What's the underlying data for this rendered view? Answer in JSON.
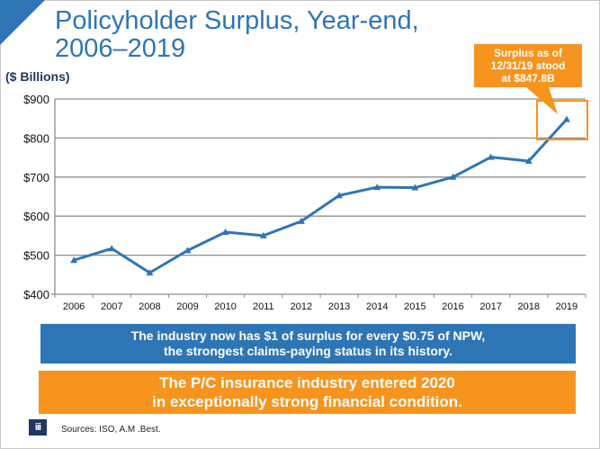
{
  "slide": {
    "title_line1": "Policyholder Surplus, Year-end,",
    "title_line2": "2006–2019",
    "units_label": "($ Billions)",
    "callout_lines": [
      "Surplus as of",
      "12/31/19 stood",
      "at $847.8B"
    ],
    "banner_blue_lines": [
      "The industry now has $1 of surplus for every $0.75 of NPW,",
      "the strongest claims-paying status in its history."
    ],
    "banner_orange_lines": [
      "The P/C insurance industry entered 2020",
      "in exceptionally strong financial condition."
    ],
    "logo_text": "iii",
    "sources": "Sources: ISO, A.M .Best.",
    "colors": {
      "brand_blue": "#2e75b6",
      "accent_orange": "#f7941d",
      "navy": "#1f3864"
    }
  },
  "chart_data": {
    "type": "line",
    "title": "Policyholder Surplus, Year-end, 2006–2019",
    "xlabel": "",
    "ylabel": "($ Billions)",
    "categories": [
      "2006",
      "2007",
      "2008",
      "2009",
      "2010",
      "2011",
      "2012",
      "2013",
      "2014",
      "2015",
      "2016",
      "2017",
      "2018",
      "2019"
    ],
    "series": [
      {
        "name": "Policyholder Surplus",
        "values": [
          487,
          517,
          455,
          512,
          559,
          550,
          587,
          653,
          674,
          673,
          700,
          751,
          741,
          847.8
        ],
        "color": "#2e75b6",
        "marker": "triangle"
      }
    ],
    "ylim": [
      400,
      900
    ],
    "yticks": [
      400,
      500,
      600,
      700,
      800,
      900
    ],
    "ytick_labels": [
      "$400",
      "$500",
      "$600",
      "$700",
      "$800",
      "$900"
    ],
    "grid": true,
    "legend": "none",
    "annotations": [
      {
        "text": "Surplus as of 12/31/19 stood at $847.8B",
        "target": "2019",
        "style": "orange callout with highlight box"
      }
    ]
  }
}
